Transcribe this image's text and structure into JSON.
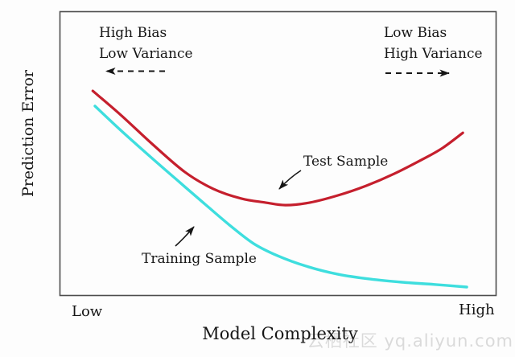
{
  "figure": {
    "y_axis_label": "Prediction Error",
    "x_axis_label": "Model Complexity",
    "x_tick_low": "Low",
    "x_tick_high": "High"
  },
  "annotations": {
    "left_block": {
      "line1": "High Bias",
      "line2": "Low Variance"
    },
    "right_block": {
      "line1": "Low Bias",
      "line2": "High Variance"
    },
    "test_sample_label": "Test Sample",
    "training_sample_label": "Training Sample"
  },
  "watermark": "云栖社区 yq.aliyun.com",
  "colors": {
    "test_curve": "#c51f2d",
    "training_curve": "#3edede",
    "frame": "#4d4d4d",
    "text": "#161616",
    "watermark": "#dadada"
  },
  "chart_data": {
    "type": "line",
    "title": "",
    "xlabel": "Model Complexity",
    "ylabel": "Prediction Error",
    "x_axis": {
      "range": [
        0,
        1
      ],
      "tick_labels": [
        "Low",
        "High"
      ],
      "numeric_ticks_shown": false
    },
    "y_axis": {
      "range": [
        0,
        1
      ],
      "tick_labels": [],
      "numeric_ticks_shown": false
    },
    "grid": false,
    "legend": "inline-annotations",
    "series": [
      {
        "name": "Test Sample",
        "color": "#c51f2d",
        "x": [
          0.076,
          0.14,
          0.214,
          0.287,
          0.352,
          0.416,
          0.471,
          0.517,
          0.573,
          0.637,
          0.702,
          0.766,
          0.831,
          0.877,
          0.923
        ],
        "y": [
          0.72,
          0.636,
          0.531,
          0.435,
          0.376,
          0.342,
          0.328,
          0.319,
          0.328,
          0.353,
          0.387,
          0.429,
          0.48,
          0.52,
          0.573
        ]
      },
      {
        "name": "Training Sample",
        "color": "#3edede",
        "x": [
          0.081,
          0.14,
          0.204,
          0.269,
          0.333,
          0.389,
          0.444,
          0.499,
          0.563,
          0.637,
          0.711,
          0.784,
          0.858,
          0.932
        ],
        "y": [
          0.667,
          0.582,
          0.494,
          0.407,
          0.322,
          0.249,
          0.184,
          0.141,
          0.105,
          0.076,
          0.059,
          0.048,
          0.04,
          0.031
        ]
      }
    ]
  }
}
